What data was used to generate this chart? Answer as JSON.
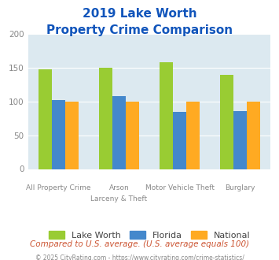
{
  "title_line1": "2019 Lake Worth",
  "title_line2": "Property Crime Comparison",
  "cat_labels_line1": [
    "All Property Crime",
    "Arson",
    "Motor Vehicle Theft",
    "Burglary"
  ],
  "cat_labels_line2": [
    "",
    "Larceny & Theft",
    "",
    ""
  ],
  "lake_worth": [
    147,
    150,
    158,
    139
  ],
  "florida": [
    102,
    108,
    84,
    86
  ],
  "national": [
    100,
    100,
    100,
    100
  ],
  "colors": {
    "lake_worth": "#99cc33",
    "florida": "#4488cc",
    "national": "#ffaa22"
  },
  "ylim": [
    0,
    200
  ],
  "yticks": [
    0,
    50,
    100,
    150,
    200
  ],
  "background_color": "#dce9f0",
  "title_color": "#1155bb",
  "footer_text": "Compared to U.S. average. (U.S. average equals 100)",
  "footer_color": "#cc5533",
  "copyright_text": "© 2025 CityRating.com - https://www.cityrating.com/crime-statistics/",
  "copyright_color": "#888888",
  "legend_labels": [
    "Lake Worth",
    "Florida",
    "National"
  ],
  "bar_width": 0.22
}
